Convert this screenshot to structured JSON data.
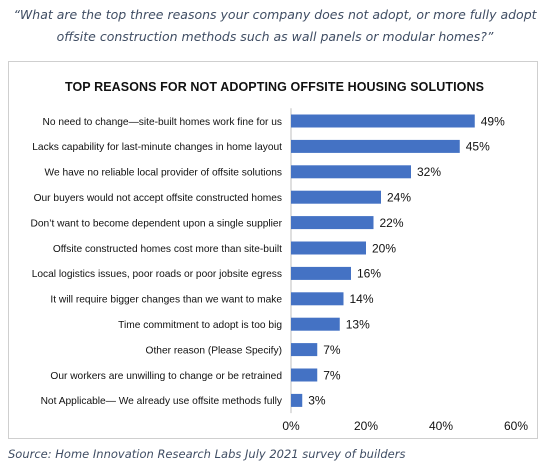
{
  "question": "“What are the top three reasons your company does not adopt, or more fully adopt offsite construction methods such as wall panels or modular homes?”",
  "source": "Source: Home Innovation Research Labs July 2021 survey of builders",
  "colors": {
    "bar": "#4472c4",
    "text": "#111111",
    "question_text": "#3f4d63"
  },
  "chart_data": {
    "type": "bar",
    "orientation": "horizontal",
    "title": "TOP REASONS FOR NOT ADOPTING OFFSITE HOUSING SOLUTIONS",
    "categories": [
      "No need to change—site-built homes work fine for us",
      "Lacks capability for last-minute changes in home layout",
      "We have no reliable local provider of offsite solutions",
      "Our buyers would not accept offsite constructed homes",
      "Don’t want to become dependent upon a single supplier",
      "Offsite constructed homes cost more than site-built",
      "Local logistics issues, poor roads or poor jobsite egress",
      "It will require bigger changes than we want to make",
      "Time commitment to adopt is too big",
      "Other reason (Please Specify)",
      "Our workers are unwilling to change or be retrained",
      "Not Applicable— We already use offsite methods fully"
    ],
    "values": [
      49,
      45,
      32,
      24,
      22,
      20,
      16,
      14,
      13,
      7,
      7,
      3
    ],
    "value_labels": [
      "49%",
      "45%",
      "32%",
      "24%",
      "22%",
      "20%",
      "16%",
      "14%",
      "13%",
      "7%",
      "7%",
      "3%"
    ],
    "xlim": [
      0,
      60
    ],
    "x_ticks": [
      0,
      20,
      40,
      60
    ],
    "x_tick_labels": [
      "0%",
      "20%",
      "40%",
      "60%"
    ],
    "grid": false,
    "legend": "none"
  }
}
